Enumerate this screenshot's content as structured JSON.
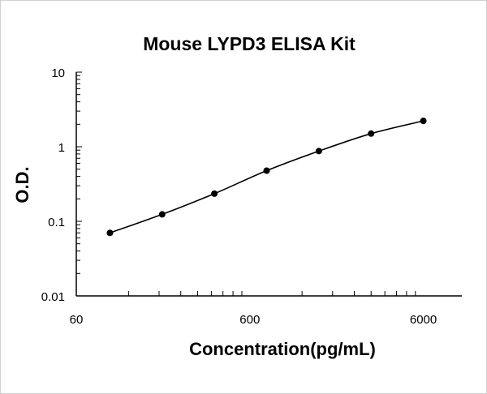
{
  "chart_data": {
    "type": "line",
    "title": "Mouse LYPD3 ELISA Kit",
    "xlabel": "Concentration(pg/mL)",
    "ylabel": "O.D.",
    "xscale": "log",
    "yscale": "log",
    "xlim": [
      60,
      10000
    ],
    "ylim": [
      0.01,
      10
    ],
    "xticks": [
      "60",
      "600",
      "6000"
    ],
    "yticks": [
      "0.01",
      "0.1",
      "1",
      "10"
    ],
    "grid": false,
    "series": [
      {
        "x": [
          93.75,
          187.5,
          375,
          750,
          1500,
          3000,
          6000
        ],
        "y": [
          0.07,
          0.124,
          0.235,
          0.478,
          0.875,
          1.5,
          2.22
        ],
        "color": "#000000",
        "marker": "circle",
        "smooth": true
      }
    ]
  }
}
